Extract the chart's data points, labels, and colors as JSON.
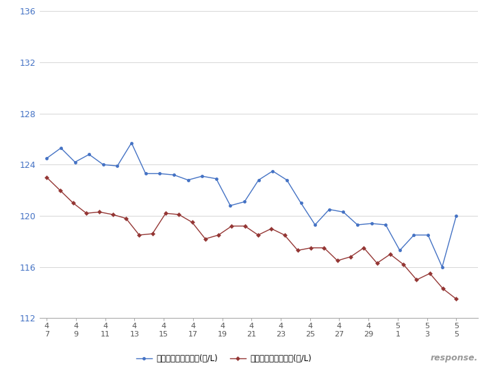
{
  "blue_values": [
    124.5,
    125.3,
    124.2,
    124.8,
    124.0,
    123.9,
    125.7,
    123.3,
    123.3,
    123.2,
    122.8,
    123.1,
    122.9,
    120.8,
    121.1,
    122.8,
    123.5,
    122.8,
    121.0,
    119.3,
    120.5,
    120.3,
    119.3,
    119.4,
    119.3,
    117.3,
    118.5,
    118.5,
    116.0,
    120.0
  ],
  "red_values": [
    123.0,
    122.0,
    121.0,
    120.2,
    120.3,
    120.1,
    119.8,
    118.5,
    118.6,
    120.2,
    120.1,
    119.5,
    118.2,
    118.5,
    119.2,
    119.2,
    118.5,
    119.0,
    118.5,
    117.3,
    117.5,
    117.5,
    116.5,
    116.8,
    117.5,
    116.3,
    117.0,
    116.2,
    115.0,
    115.5,
    114.3,
    113.5
  ],
  "tick_labels_top": [
    "4",
    "4",
    "4",
    "4",
    "4",
    "4",
    "4",
    "4",
    "4",
    "4",
    "4",
    "4",
    "5",
    "5",
    "5"
  ],
  "tick_labels_bot": [
    "7",
    "9",
    "11",
    "13",
    "15",
    "17",
    "19",
    "21",
    "23",
    "25",
    "27",
    "29",
    "1",
    "3",
    "5"
  ],
  "legend_blue": "レギュラー看板価格(円/L)",
  "legend_red": "レギュラー実売価格(円/L)",
  "blue_color": "#4472C4",
  "red_color": "#943634",
  "ylim_min": 112,
  "ylim_max": 136,
  "yticks": [
    112,
    116,
    120,
    124,
    128,
    132,
    136
  ],
  "bg_color": "#FFFFFF",
  "grid_color": "#D0D0D0"
}
